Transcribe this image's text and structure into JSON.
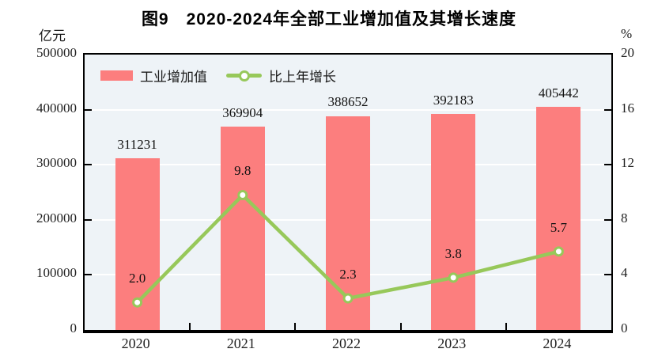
{
  "title": "图9　2020-2024年全部工业增加值及其增长速度",
  "left_axis": {
    "unit": "亿元",
    "ticks": [
      "500000",
      "400000",
      "300000",
      "200000",
      "100000",
      "0"
    ]
  },
  "right_axis": {
    "unit": "%",
    "ticks": [
      "20",
      "16",
      "12",
      "8",
      "4",
      "0"
    ]
  },
  "colors": {
    "bar": "#FC7E7E",
    "line": "#97C85A",
    "marker_fill": "#FFFFFF",
    "plot_background": "#EEF3F7",
    "gridline": "#FFFFFF",
    "axis": "#000000",
    "text": "#1A1A1A"
  },
  "chart_data": {
    "type": "bar+line combo",
    "title": "图9　2020-2024年全部工业增加值及其增长速度",
    "categories": [
      "2020",
      "2021",
      "2022",
      "2023",
      "2024"
    ],
    "series": [
      {
        "name": "工业增加值",
        "type": "bar",
        "axis": "left",
        "values": [
          311231,
          369904,
          388652,
          392183,
          405442
        ]
      },
      {
        "name": "比上年增长",
        "type": "line",
        "axis": "right",
        "values": [
          2.0,
          9.8,
          2.3,
          3.8,
          5.7
        ]
      }
    ],
    "left_ylabel": "亿元",
    "right_ylabel": "%",
    "left_ylim": [
      0,
      500000
    ],
    "right_ylim": [
      0,
      20
    ],
    "grid": true,
    "legend_position": "top-left-inside"
  }
}
